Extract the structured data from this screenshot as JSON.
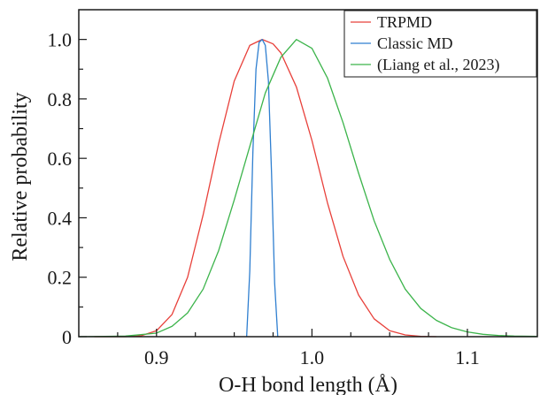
{
  "chart_data": {
    "type": "line",
    "title": "",
    "xlabel": "O-H bond length (Å)",
    "ylabel": "Relative probability",
    "xlim": [
      0.85,
      1.145
    ],
    "ylim": [
      0,
      1.1
    ],
    "x_ticks": [
      0.9,
      1.0,
      1.1
    ],
    "x_tick_labels": [
      "0.9",
      "1.0",
      "1.1"
    ],
    "y_ticks": [
      0,
      0.2,
      0.4,
      0.6,
      0.8,
      1.0
    ],
    "y_tick_labels": [
      "0",
      "0.2",
      "0.4",
      "0.6",
      "0.8",
      "1.0"
    ],
    "grid": false,
    "legend_position": "top-right",
    "series": [
      {
        "name": "TRPMD",
        "color": "#e8403a",
        "x": [
          0.86,
          0.88,
          0.89,
          0.9,
          0.91,
          0.92,
          0.93,
          0.94,
          0.95,
          0.96,
          0.968,
          0.975,
          0.98,
          0.99,
          1.0,
          1.01,
          1.02,
          1.03,
          1.04,
          1.05,
          1.06,
          1.07,
          1.08
        ],
        "y": [
          0.0,
          0.0,
          0.003,
          0.02,
          0.075,
          0.2,
          0.41,
          0.65,
          0.86,
          0.98,
          1.0,
          0.985,
          0.955,
          0.84,
          0.66,
          0.45,
          0.27,
          0.14,
          0.06,
          0.02,
          0.006,
          0.001,
          0.0
        ]
      },
      {
        "name": "Classic MD",
        "color": "#2f7fd0",
        "x": [
          0.958,
          0.96,
          0.962,
          0.964,
          0.966,
          0.968,
          0.97,
          0.972,
          0.974,
          0.976,
          0.978
        ],
        "y": [
          0.0,
          0.22,
          0.62,
          0.9,
          0.99,
          1.0,
          0.98,
          0.86,
          0.55,
          0.18,
          0.0
        ]
      },
      {
        "name": "(Liang et al., 2023)",
        "color": "#3cb44b",
        "x": [
          0.85,
          0.88,
          0.9,
          0.91,
          0.92,
          0.93,
          0.94,
          0.95,
          0.96,
          0.97,
          0.98,
          0.99,
          1.0,
          1.01,
          1.02,
          1.03,
          1.04,
          1.05,
          1.06,
          1.07,
          1.08,
          1.09,
          1.1,
          1.11,
          1.12,
          1.13,
          1.145
        ],
        "y": [
          0.0,
          0.002,
          0.012,
          0.035,
          0.08,
          0.16,
          0.29,
          0.46,
          0.64,
          0.82,
          0.94,
          1.0,
          0.97,
          0.87,
          0.72,
          0.55,
          0.39,
          0.26,
          0.16,
          0.095,
          0.055,
          0.03,
          0.016,
          0.008,
          0.004,
          0.002,
          0.001
        ]
      }
    ]
  }
}
